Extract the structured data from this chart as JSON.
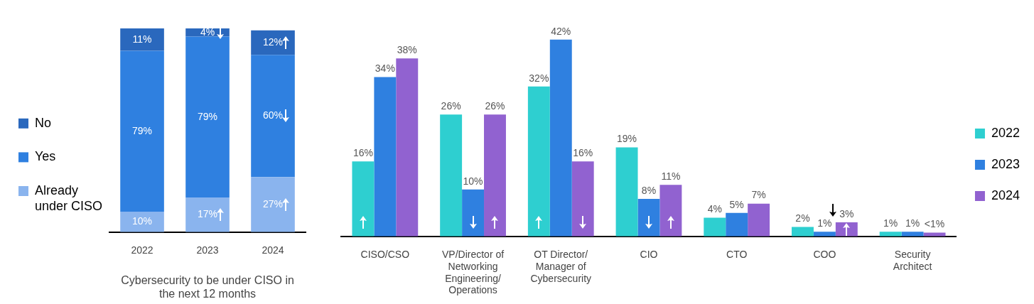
{
  "chart_data": [
    {
      "type": "bar",
      "stacked": true,
      "categories": [
        "2022",
        "2023",
        "2024"
      ],
      "xlabel": "Cybersecurity to be under CISO in the next 12 months",
      "ylim": [
        0,
        100
      ],
      "tick_labels": "x",
      "legend": "left",
      "series": [
        {
          "name": "Already under CISO",
          "color": "#8ab4ee",
          "values": [
            10,
            17,
            27
          ],
          "value_labels": [
            "10%",
            "17%",
            "27%"
          ]
        },
        {
          "name": "Yes",
          "color": "#2f80e0",
          "values": [
            79,
            79,
            60
          ],
          "value_labels": [
            "79%",
            "79%",
            "60%"
          ]
        },
        {
          "name": "No",
          "color": "#2a68bd",
          "values": [
            11,
            4,
            12
          ],
          "value_labels": [
            "11%",
            "4%",
            "12%"
          ]
        }
      ]
    },
    {
      "type": "bar",
      "categories": [
        "CISO/CSO",
        "VP/Director of Networking Engineering/ Operations",
        "OT Director/ Manager of Cybersecurity",
        "CIO",
        "CTO",
        "COO",
        "Security Architect"
      ],
      "tick_labels": "x",
      "legend": "right",
      "series": [
        {
          "name": "2022",
          "color": "#2ecfd0",
          "values": [
            16,
            26,
            32,
            19,
            4,
            2,
            1
          ],
          "value_labels": [
            "16%",
            "26%",
            "32%",
            "19%",
            "4%",
            "2%",
            "1%"
          ]
        },
        {
          "name": "2023",
          "color": "#2f80e0",
          "values": [
            34,
            10,
            42,
            8,
            5,
            1,
            1
          ],
          "value_labels": [
            "34%",
            "10%",
            "42%",
            "8%",
            "5%",
            "1%",
            "1%"
          ]
        },
        {
          "name": "2024",
          "color": "#9162d0",
          "values": [
            38,
            26,
            16,
            11,
            7,
            3,
            0.8
          ],
          "value_labels": [
            "38%",
            "26%",
            "16%",
            "11%",
            "7%",
            "3%",
            "<1%"
          ]
        }
      ]
    }
  ]
}
